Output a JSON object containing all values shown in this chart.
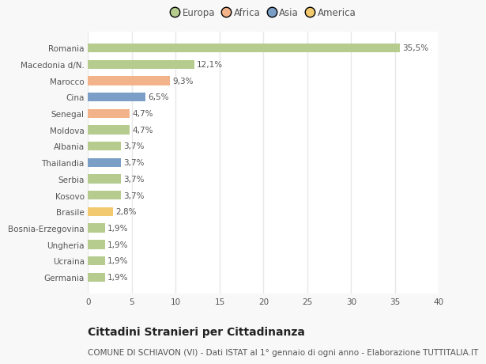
{
  "categories": [
    "Germania",
    "Ucraina",
    "Ungheria",
    "Bosnia-Erzegovina",
    "Brasile",
    "Kosovo",
    "Serbia",
    "Thailandia",
    "Albania",
    "Moldova",
    "Senegal",
    "Cina",
    "Marocco",
    "Macedonia d/N.",
    "Romania"
  ],
  "values": [
    1.9,
    1.9,
    1.9,
    1.9,
    2.8,
    3.7,
    3.7,
    3.7,
    3.7,
    4.7,
    4.7,
    6.5,
    9.3,
    12.1,
    35.5
  ],
  "labels": [
    "1,9%",
    "1,9%",
    "1,9%",
    "1,9%",
    "2,8%",
    "3,7%",
    "3,7%",
    "3,7%",
    "3,7%",
    "4,7%",
    "4,7%",
    "6,5%",
    "9,3%",
    "12,1%",
    "35,5%"
  ],
  "colors": [
    "#b5cc8e",
    "#b5cc8e",
    "#b5cc8e",
    "#b5cc8e",
    "#f2c96e",
    "#b5cc8e",
    "#b5cc8e",
    "#7b9ec7",
    "#b5cc8e",
    "#b5cc8e",
    "#f2b28a",
    "#7b9ec7",
    "#f2b28a",
    "#b5cc8e",
    "#b5cc8e"
  ],
  "continent_colors": {
    "Europa": "#b5cc8e",
    "Africa": "#f2b28a",
    "Asia": "#7b9ec7",
    "America": "#f2c96e"
  },
  "xlim": [
    0,
    40
  ],
  "xticks": [
    0,
    5,
    10,
    15,
    20,
    25,
    30,
    35,
    40
  ],
  "title": "Cittadini Stranieri per Cittadinanza",
  "subtitle": "COMUNE DI SCHIAVON (VI) - Dati ISTAT al 1° gennaio di ogni anno - Elaborazione TUTTITALIA.IT",
  "plot_bg": "#ffffff",
  "fig_bg": "#f8f8f8",
  "bar_height": 0.55,
  "grid_color": "#e8e8e8",
  "text_color": "#555555",
  "title_fontsize": 10,
  "subtitle_fontsize": 7.5,
  "label_fontsize": 7.5,
  "tick_fontsize": 7.5,
  "legend_fontsize": 8.5
}
